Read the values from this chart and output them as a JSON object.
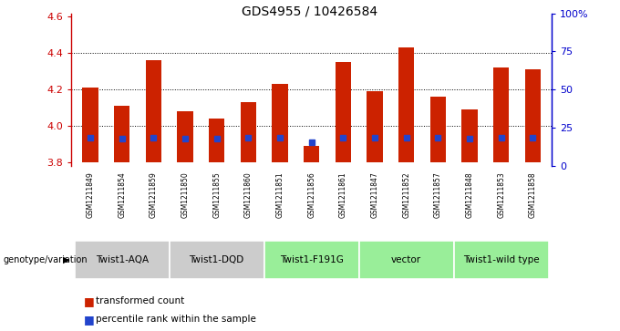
{
  "title": "GDS4955 / 10426584",
  "samples": [
    "GSM1211849",
    "GSM1211854",
    "GSM1211859",
    "GSM1211850",
    "GSM1211855",
    "GSM1211860",
    "GSM1211851",
    "GSM1211856",
    "GSM1211861",
    "GSM1211847",
    "GSM1211852",
    "GSM1211857",
    "GSM1211848",
    "GSM1211853",
    "GSM1211858"
  ],
  "red_values": [
    4.21,
    4.11,
    4.36,
    4.08,
    4.04,
    4.13,
    4.23,
    3.89,
    4.35,
    4.19,
    4.43,
    4.16,
    4.09,
    4.32,
    4.31
  ],
  "blue_values": [
    3.935,
    3.93,
    3.935,
    3.93,
    3.93,
    3.935,
    3.935,
    3.91,
    3.935,
    3.935,
    3.935,
    3.935,
    3.93,
    3.935,
    3.935
  ],
  "baseline": 3.8,
  "ylim_left": [
    3.78,
    4.62
  ],
  "ylim_right": [
    0,
    100
  ],
  "yticks_left": [
    3.8,
    4.0,
    4.2,
    4.4,
    4.6
  ],
  "ytick_labels_left": [
    "3.8",
    "4.0",
    "4.2",
    "4.4",
    "4.6"
  ],
  "yticks_right": [
    0,
    25,
    50,
    75,
    100
  ],
  "ytick_labels_right": [
    "0",
    "25",
    "50",
    "75",
    "100%"
  ],
  "gridlines": [
    4.0,
    4.2,
    4.4
  ],
  "groups": [
    {
      "label": "Twist1-AQA",
      "indices": [
        0,
        1,
        2
      ],
      "color": "#cccccc"
    },
    {
      "label": "Twist1-DQD",
      "indices": [
        3,
        4,
        5
      ],
      "color": "#cccccc"
    },
    {
      "label": "Twist1-F191G",
      "indices": [
        6,
        7,
        8
      ],
      "color": "#99ee99"
    },
    {
      "label": "vector",
      "indices": [
        9,
        10,
        11
      ],
      "color": "#99ee99"
    },
    {
      "label": "Twist1-wild type",
      "indices": [
        12,
        13,
        14
      ],
      "color": "#99ee99"
    }
  ],
  "bar_color": "#cc2200",
  "blue_color": "#2244cc",
  "genotype_label": "genotype/variation",
  "legend_items": [
    "transformed count",
    "percentile rank within the sample"
  ],
  "bg_color": "#ffffff",
  "left_axis_color": "#cc0000",
  "right_axis_color": "#0000cc",
  "sample_bg_color": "#cccccc",
  "bar_width": 0.5
}
